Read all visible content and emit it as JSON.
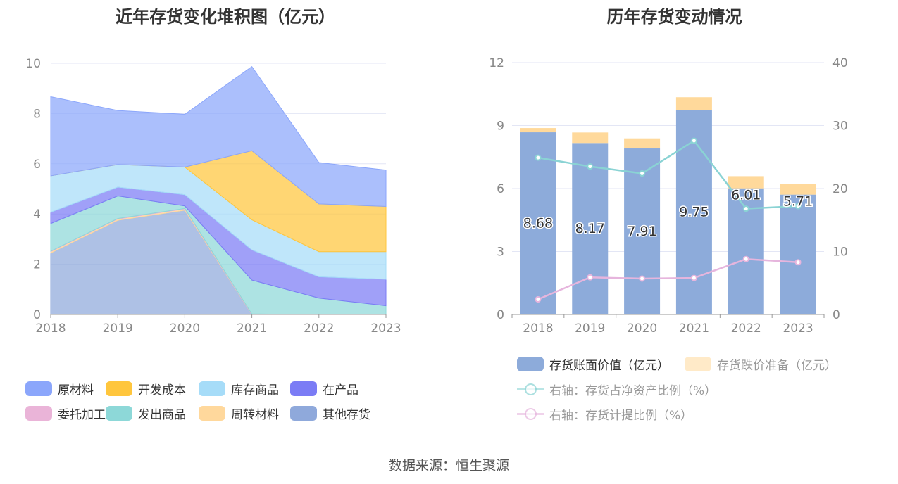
{
  "left_title": "近年存货变化堆积图（亿元）",
  "right_title": "历年存货变动情况",
  "source": "数据来源：恒生聚源",
  "chart_data": [
    {
      "type": "area",
      "title": "近年存货变化堆积图（亿元）",
      "x": [
        "2018",
        "2019",
        "2020",
        "2021",
        "2022",
        "2023"
      ],
      "ylim": [
        0,
        10
      ],
      "yticks": [
        "0",
        "2",
        "4",
        "6",
        "8",
        "10"
      ],
      "grid": true,
      "legend_position": "bottom",
      "stack_order_bottom_to_top": [
        "其他存货",
        "周转材料",
        "委托加工材料",
        "发出商品",
        "在产品",
        "库存商品",
        "开发成本",
        "原材料"
      ],
      "series": [
        {
          "name": "原材料",
          "color": "#8ba6fb",
          "values": [
            3.15,
            2.15,
            2.1,
            3.35,
            1.65,
            1.45
          ]
        },
        {
          "name": "开发成本",
          "color": "#ffc63d",
          "values": [
            0,
            0,
            0,
            2.75,
            1.9,
            1.8
          ]
        },
        {
          "name": "库存商品",
          "color": "#a6dcf8",
          "values": [
            1.45,
            0.9,
            1.1,
            1.2,
            1.0,
            1.1
          ]
        },
        {
          "name": "在产品",
          "color": "#7b7cf5",
          "values": [
            0.45,
            0.35,
            0.45,
            1.2,
            0.85,
            1.05
          ]
        },
        {
          "name": "委托加工材料",
          "color": "#eab4d8",
          "values": [
            0.02,
            0.02,
            0.02,
            0.02,
            0,
            0
          ]
        },
        {
          "name": "发出商品",
          "color": "#8dd8d8",
          "values": [
            1.1,
            0.9,
            0.1,
            1.35,
            0.65,
            0.35
          ]
        },
        {
          "name": "周转材料",
          "color": "#ffd89c",
          "values": [
            0.05,
            0.05,
            0.05,
            0,
            0,
            0
          ]
        },
        {
          "name": "其他存货",
          "color": "#8fa9db",
          "values": [
            2.45,
            3.75,
            4.15,
            0,
            0,
            0
          ]
        }
      ]
    },
    {
      "type": "bar",
      "title": "历年存货变动情况",
      "categories": [
        "2018",
        "2019",
        "2020",
        "2021",
        "2022",
        "2023"
      ],
      "ylim_left": [
        0,
        12
      ],
      "yticks_left": [
        "0",
        "3",
        "6",
        "9",
        "12"
      ],
      "ylim_right": [
        0,
        40
      ],
      "yticks_right": [
        "0",
        "10",
        "20",
        "30",
        "40"
      ],
      "grid": true,
      "legend_position": "bottom",
      "bars": [
        {
          "name": "存货账面价值（亿元）",
          "color": "#8dabda",
          "values": [
            8.68,
            8.17,
            7.91,
            9.75,
            6.01,
            5.71
          ],
          "labels": [
            "8.68",
            "8.17",
            "7.91",
            "9.75",
            "6.01",
            "5.71"
          ]
        },
        {
          "name": "存货跌价准备（亿元）",
          "color": "#ffd99b",
          "values": [
            0.2,
            0.5,
            0.48,
            0.6,
            0.58,
            0.5
          ]
        }
      ],
      "lines": [
        {
          "name": "右轴：存货占净资产比例（%）",
          "color": "#8ad3d4",
          "axis": "right",
          "values": [
            24.9,
            23.5,
            22.4,
            27.6,
            16.8,
            17.2
          ]
        },
        {
          "name": "右轴：存货计提比例（%）",
          "color": "#e6b5dd",
          "axis": "right",
          "values": [
            2.4,
            5.9,
            5.7,
            5.8,
            8.8,
            8.3
          ]
        }
      ]
    }
  ]
}
